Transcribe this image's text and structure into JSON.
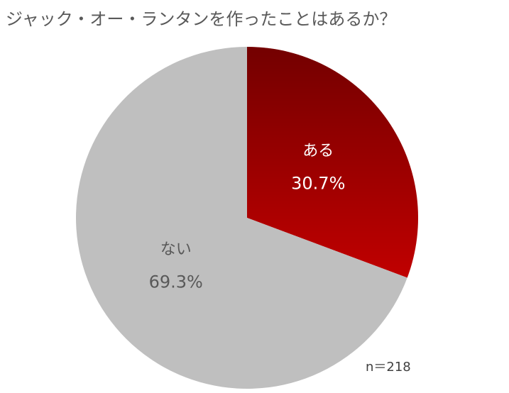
{
  "chart_data": {
    "type": "pie",
    "title": "ジャック・オー・ランタンを作ったことはあるか？",
    "categories": [
      "ある",
      "ない"
    ],
    "values": [
      30.7,
      69.3
    ],
    "value_labels": [
      "30.7%",
      "69.3%"
    ],
    "colors": [
      "#c00000",
      "#bfbfbf"
    ],
    "note": "n＝218"
  }
}
